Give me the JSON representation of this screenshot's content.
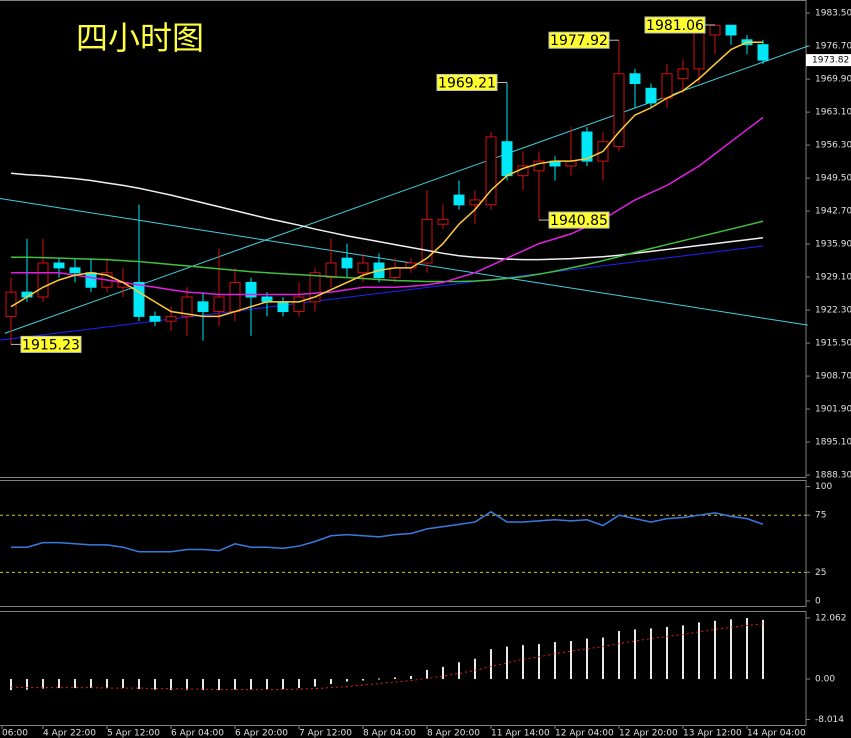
{
  "chart_data": [
    {
      "type": "candlestick",
      "title": "四小时图",
      "candles": [
        {
          "open": 1921,
          "high": 1929,
          "low": 1915.23,
          "close": 1926
        },
        {
          "open": 1926,
          "high": 1937,
          "low": 1924,
          "close": 1925
        },
        {
          "open": 1925,
          "high": 1937,
          "low": 1924,
          "close": 1932
        },
        {
          "open": 1932,
          "high": 1933,
          "low": 1929,
          "close": 1931
        },
        {
          "open": 1931,
          "high": 1933,
          "low": 1928,
          "close": 1930
        },
        {
          "open": 1930,
          "high": 1933,
          "low": 1926,
          "close": 1927
        },
        {
          "open": 1927,
          "high": 1933,
          "low": 1926,
          "close": 1930
        },
        {
          "open": 1927,
          "high": 1931,
          "low": 1925,
          "close": 1928
        },
        {
          "open": 1928,
          "high": 1944,
          "low": 1920,
          "close": 1921
        },
        {
          "open": 1921,
          "high": 1922,
          "low": 1919,
          "close": 1920
        },
        {
          "open": 1920,
          "high": 1923,
          "low": 1918,
          "close": 1921
        },
        {
          "open": 1921,
          "high": 1927,
          "low": 1917,
          "close": 1925
        },
        {
          "open": 1924,
          "high": 1926,
          "low": 1916,
          "close": 1922
        },
        {
          "open": 1922,
          "high": 1935,
          "low": 1919,
          "close": 1925
        },
        {
          "open": 1922,
          "high": 1931,
          "low": 1920,
          "close": 1928
        },
        {
          "open": 1928,
          "high": 1929,
          "low": 1917,
          "close": 1925
        },
        {
          "open": 1925,
          "high": 1926,
          "low": 1921,
          "close": 1924
        },
        {
          "open": 1924,
          "high": 1925,
          "low": 1921,
          "close": 1922
        },
        {
          "open": 1922,
          "high": 1928,
          "low": 1921,
          "close": 1925
        },
        {
          "open": 1924,
          "high": 1931,
          "low": 1922,
          "close": 1930
        },
        {
          "open": 1929,
          "high": 1937,
          "low": 1927,
          "close": 1932
        },
        {
          "open": 1933,
          "high": 1936,
          "low": 1929,
          "close": 1931
        },
        {
          "open": 1930,
          "high": 1934,
          "low": 1928,
          "close": 1932
        },
        {
          "open": 1932,
          "high": 1934,
          "low": 1928,
          "close": 1929
        },
        {
          "open": 1929,
          "high": 1933,
          "low": 1928,
          "close": 1931
        },
        {
          "open": 1931,
          "high": 1933,
          "low": 1930,
          "close": 1932
        },
        {
          "open": 1932,
          "high": 1947,
          "low": 1930,
          "close": 1941
        },
        {
          "open": 1940,
          "high": 1944,
          "low": 1939,
          "close": 1941
        },
        {
          "open": 1946,
          "high": 1949,
          "low": 1943,
          "close": 1944
        },
        {
          "open": 1944,
          "high": 1947,
          "low": 1940,
          "close": 1945
        },
        {
          "open": 1944,
          "high": 1959,
          "low": 1943,
          "close": 1958
        },
        {
          "open": 1957,
          "high": 1969.21,
          "low": 1949,
          "close": 1950
        },
        {
          "open": 1950,
          "high": 1955,
          "low": 1947,
          "close": 1952
        },
        {
          "open": 1951,
          "high": 1955,
          "low": 1940.85,
          "close": 1953
        },
        {
          "open": 1953,
          "high": 1954,
          "low": 1949,
          "close": 1952
        },
        {
          "open": 1952,
          "high": 1960,
          "low": 1950,
          "close": 1953
        },
        {
          "open": 1959,
          "high": 1960,
          "low": 1952,
          "close": 1953
        },
        {
          "open": 1953,
          "high": 1959,
          "low": 1949,
          "close": 1957
        },
        {
          "open": 1956,
          "high": 1977.92,
          "low": 1955,
          "close": 1971
        },
        {
          "open": 1971,
          "high": 1972,
          "low": 1964,
          "close": 1969
        },
        {
          "open": 1968,
          "high": 1969,
          "low": 1964,
          "close": 1965
        },
        {
          "open": 1966,
          "high": 1973,
          "low": 1964,
          "close": 1971
        },
        {
          "open": 1970,
          "high": 1974,
          "low": 1967,
          "close": 1972
        },
        {
          "open": 1972,
          "high": 1981,
          "low": 1969,
          "close": 1980
        },
        {
          "open": 1979,
          "high": 1981.06,
          "low": 1975,
          "close": 1981
        },
        {
          "open": 1981,
          "high": 1981,
          "low": 1977,
          "close": 1979
        },
        {
          "open": 1978,
          "high": 1979,
          "low": 1975,
          "close": 1977
        },
        {
          "open": 1977,
          "high": 1978,
          "low": 1973,
          "close": 1973.82
        }
      ],
      "bull_color": "#d01010",
      "bear_color": "#00e8f8",
      "series": [
        {
          "color": "#f0f0f0",
          "values": [
            1950.5,
            1950.2,
            1950,
            1949.7,
            1949.4,
            1949,
            1948.5,
            1948,
            1947.4,
            1946.7,
            1946,
            1945.2,
            1944.4,
            1943.6,
            1942.8,
            1942,
            1941.2,
            1940.5,
            1939.8,
            1939,
            1938.3,
            1937.6,
            1937,
            1936.4,
            1935.8,
            1935.2,
            1934.6,
            1934,
            1933.5,
            1933.2,
            1933,
            1932.8,
            1932.7,
            1932.7,
            1932.8,
            1932.9,
            1933.1,
            1933.3,
            1933.6,
            1934,
            1934.4,
            1934.8,
            1935.2,
            1935.6,
            1936,
            1936.4,
            1936.8,
            1937.2
          ]
        },
        {
          "color": "#40c040",
          "values": [
            1933.2,
            1933.2,
            1933.1,
            1933,
            1932.9,
            1932.8,
            1932.7,
            1932.5,
            1932.3,
            1932,
            1931.7,
            1931.4,
            1931.1,
            1930.8,
            1930.5,
            1930.2,
            1930,
            1929.8,
            1929.6,
            1929.4,
            1929.2,
            1929,
            1928.8,
            1928.6,
            1928.4,
            1928.3,
            1928.2,
            1928.2,
            1928.2,
            1928.3,
            1928.5,
            1928.8,
            1929.2,
            1929.7,
            1930.3,
            1931,
            1931.7,
            1932.5,
            1933.3,
            1934.2,
            1935,
            1935.8,
            1936.6,
            1937.4,
            1938.2,
            1939,
            1939.8,
            1940.6
          ]
        },
        {
          "color": "#e020e0",
          "values": [
            1930,
            1930,
            1930,
            1930,
            1929.5,
            1929,
            1928.5,
            1928,
            1927.5,
            1927,
            1926.5,
            1926,
            1925.8,
            1925.5,
            1925.5,
            1925.5,
            1925.5,
            1925.5,
            1925.5,
            1925.8,
            1926,
            1926.5,
            1927,
            1927,
            1927,
            1927.2,
            1927.5,
            1928,
            1929,
            1930,
            1931.5,
            1933,
            1934.5,
            1936,
            1937,
            1938,
            1939.5,
            1941,
            1943,
            1945,
            1946.5,
            1948,
            1950,
            1952,
            1954.5,
            1957,
            1959.5,
            1962
          ]
        },
        {
          "color": "#ffcc33",
          "values": [
            1923,
            1925,
            1927,
            1928.5,
            1929.5,
            1930,
            1929.5,
            1928,
            1926,
            1924,
            1922,
            1921.5,
            1921,
            1921,
            1922,
            1923,
            1924,
            1924,
            1924,
            1925,
            1926.5,
            1928,
            1929.5,
            1930.5,
            1931,
            1931,
            1933,
            1936,
            1940,
            1943,
            1947,
            1950,
            1951.5,
            1952.5,
            1953,
            1953,
            1953.5,
            1955,
            1959,
            1962.5,
            1964,
            1966,
            1967.5,
            1970,
            1973,
            1976,
            1977.5,
            1977.5
          ]
        }
      ],
      "trendlines": [
        {
          "color": "#2020ff",
          "x": [
            -0.7,
            47
          ],
          "values": [
            1916.1,
            1935.5
          ]
        },
        {
          "color": "#40d0e0",
          "x": [
            -0.4,
            49.8
          ],
          "values": [
            1917.5,
            1976.7
          ]
        },
        {
          "color": "#40d0e0",
          "x": [
            -0.7,
            49.8
          ],
          "values": [
            1945.3,
            1919.2
          ]
        }
      ],
      "price_labels": [
        1915.23,
        1969.21,
        1940.85,
        1977.92,
        1981.06
      ],
      "last_price": 1973.82,
      "ylim": [
        1887.9,
        1986.0
      ],
      "yticks": [
        {
          "value": 1983.5,
          "label": "1983.50"
        },
        {
          "value": 1976.7,
          "label": "1976.70"
        },
        {
          "value": 1969.9,
          "label": "1969.90"
        },
        {
          "value": 1963.1,
          "label": "1963.10"
        },
        {
          "value": 1956.3,
          "label": "1956.30"
        },
        {
          "value": 1949.5,
          "label": "1949.50"
        },
        {
          "value": 1942.7,
          "label": "1942.70"
        },
        {
          "value": 1935.9,
          "label": "1935.90"
        },
        {
          "value": 1929.1,
          "label": "1929.10"
        },
        {
          "value": 1922.3,
          "label": "1922.30"
        },
        {
          "value": 1915.5,
          "label": "1915.50"
        },
        {
          "value": 1908.7,
          "label": "1908.70"
        },
        {
          "value": 1901.9,
          "label": "1901.90"
        },
        {
          "value": 1895.1,
          "label": "1895.10"
        },
        {
          "value": 1888.3,
          "label": "1888.30"
        }
      ],
      "time_labels": [
        "06:00",
        "4 Apr 22:00",
        "5 Apr 12:00",
        "6 Apr 04:00",
        "6 Apr 20:00",
        "7 Apr 12:00",
        "8 Apr 04:00",
        "8 Apr 20:00",
        "11 Apr 14:00",
        "12 Apr 04:00",
        "12 Apr 20:00",
        "13 Apr 12:00",
        "14 Apr 04:00"
      ]
    },
    {
      "type": "line",
      "series": [
        {
          "color": "#3a7ae0",
          "values": [
            47,
            47,
            51,
            51,
            50,
            49,
            49,
            47,
            43,
            43,
            43,
            45,
            45,
            44,
            50,
            47,
            47,
            46,
            48,
            52,
            57,
            58,
            57,
            56,
            58,
            59,
            63,
            65,
            67,
            69,
            78,
            69,
            69,
            70,
            71,
            70,
            71,
            66,
            75,
            72,
            69,
            72,
            73,
            75,
            77,
            74,
            72,
            67
          ]
        }
      ],
      "levels": [
        75,
        25
      ],
      "level_color": "#d8c020",
      "ylim": [
        -4.4,
        104.9
      ],
      "yticks": [
        100,
        75,
        25,
        0
      ]
    },
    {
      "type": "bar",
      "color": "#e8e8e8",
      "values": [
        -2.2,
        -2.1,
        -1.9,
        -1.8,
        -1.8,
        -1.8,
        -1.8,
        -1.8,
        -2.0,
        -2.1,
        -2.2,
        -2.2,
        -2.2,
        -2.2,
        -2.1,
        -2.1,
        -2.0,
        -2.0,
        -1.8,
        -1.5,
        -1.0,
        -0.5,
        -0.3,
        0.1,
        0.3,
        0.6,
        1.8,
        2.4,
        3.3,
        4.0,
        5.9,
        6.4,
        6.7,
        6.9,
        7.3,
        7.5,
        8.0,
        8.2,
        9.5,
        9.8,
        10.0,
        10.3,
        10.6,
        11.2,
        11.5,
        11.8,
        12.062,
        11.7
      ],
      "series": [
        {
          "color": "#e02020",
          "values": [
            -1.6,
            -1.7,
            -1.7,
            -1.7,
            -1.7,
            -1.7,
            -1.8,
            -1.8,
            -1.8,
            -1.9,
            -1.9,
            -2.0,
            -2.0,
            -2.1,
            -2.1,
            -2.1,
            -2.1,
            -2.1,
            -2.0,
            -1.9,
            -1.7,
            -1.5,
            -1.2,
            -0.9,
            -0.6,
            -0.3,
            0.1,
            0.6,
            1.1,
            1.7,
            2.5,
            3.2,
            3.9,
            4.4,
            5.0,
            5.5,
            6.0,
            6.4,
            7.0,
            7.5,
            8.0,
            8.4,
            8.8,
            9.3,
            9.8,
            10.2,
            10.6,
            10.9
          ]
        }
      ],
      "ylim": [
        -9.1,
        13.25
      ],
      "yticks": [
        12.062,
        {
          "value": 0,
          "label": "0.00"
        },
        -8.014
      ]
    }
  ]
}
